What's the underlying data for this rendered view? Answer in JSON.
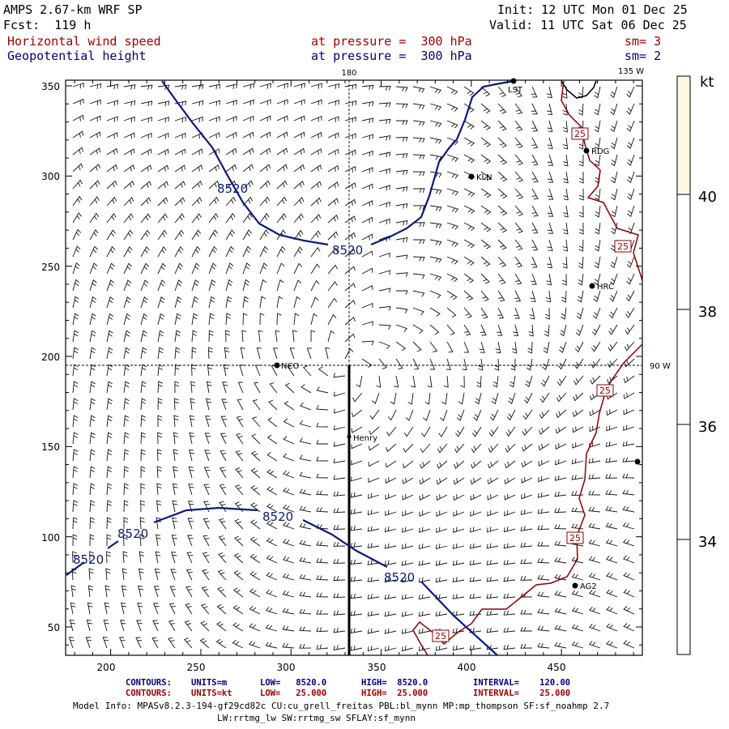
{
  "header": {
    "model": "AMPS 2.67-km WRF SP",
    "forecast": "Fcst:  119 h",
    "init": "Init: 12 UTC Mon 01 Dec 25",
    "valid": "Valid: 11 UTC Sat 06 Dec 25",
    "field1_name": "Horizontal wind speed",
    "field1_level": "at pressure =  300 hPa",
    "field1_smooth": "sm= 3",
    "field2_name": "Geopotential height",
    "field2_level": "at pressure =  300 hPa",
    "field2_smooth": "sm= 2"
  },
  "map": {
    "x_ticks": [
      "200",
      "250",
      "300",
      "350",
      "400",
      "450"
    ],
    "y_ticks": [
      "350",
      "300",
      "250",
      "200",
      "150",
      "100",
      "50"
    ],
    "longitude_labels": [
      "180",
      "135 W",
      "90 W"
    ],
    "stations": [
      {
        "name": "NCO"
      },
      {
        "name": "Henry"
      },
      {
        "name": "KLN"
      },
      {
        "name": "RDG"
      },
      {
        "name": "HRC"
      },
      {
        "name": "AG2"
      },
      {
        "name": "LST"
      },
      {
        "name": ""
      }
    ],
    "height_contour_label": "8520",
    "wind_contour_label": "25"
  },
  "colorbar": {
    "unit": "kt",
    "ticks": [
      "40",
      "38",
      "36",
      "34"
    ],
    "fill_color": "#fdf8e4"
  },
  "legend": {
    "row1": {
      "title": "CONTOURS:",
      "units": "UNITS=m",
      "low": "LOW=   8520.0",
      "high": "HIGH=  8520.0",
      "interval": "INTERVAL=    120.00"
    },
    "row2": {
      "title": "CONTOURS:",
      "units": "UNITS=kt",
      "low": "LOW=   25.000",
      "high": "HIGH=  25.000",
      "interval": "INTERVAL=    25.000"
    }
  },
  "model_info": {
    "line1": "Model Info: MPASv8.2.3-194-gf29cd82c CU:cu_grell_freitas PBL:bl_mynn MP:mp_thompson SF:sf_noahmp 2.7",
    "line2": "LW:rrtmg_lw SW:rrtmg_sw SFLAY:sf_mynn"
  },
  "colors": {
    "height_contour": "#0a1a7a",
    "wind_contour": "#8b0000",
    "header_red": "#a00000",
    "header_blue": "#000080"
  }
}
